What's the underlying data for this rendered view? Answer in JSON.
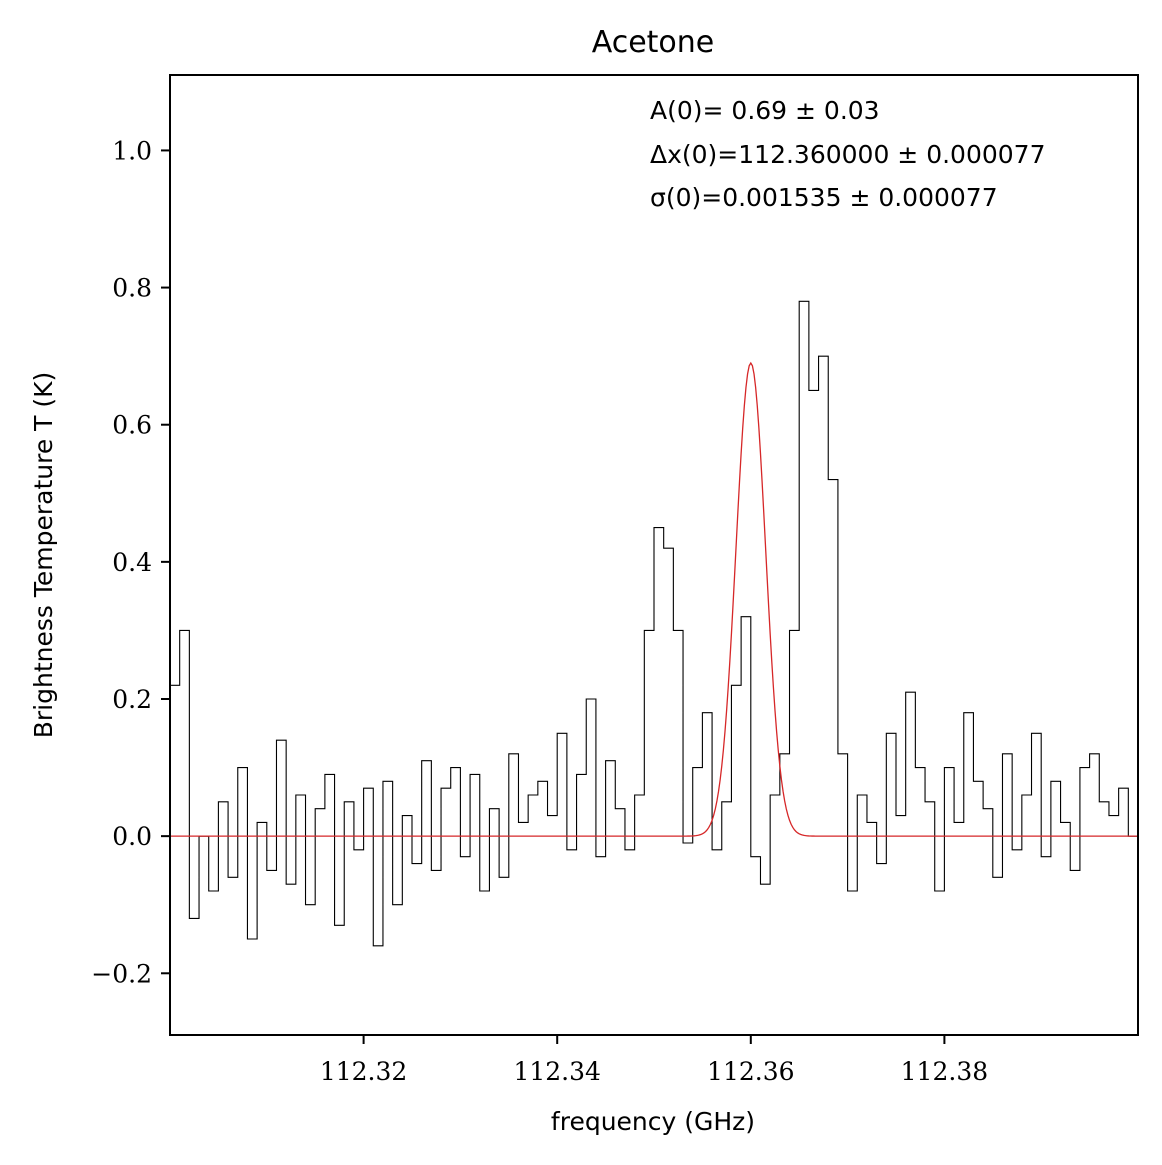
{
  "chart_data": {
    "type": "line",
    "title": "Acetone",
    "xlabel": "frequency (GHz)",
    "ylabel": "Brightness Temperature T (K)",
    "xlim": [
      112.3,
      112.4
    ],
    "ylim": [
      -0.29,
      1.11
    ],
    "x_ticks": [
      112.32,
      112.34,
      112.36,
      112.38
    ],
    "x_tick_labels": [
      "112.32",
      "112.34",
      "112.36",
      "112.38"
    ],
    "y_ticks": [
      -0.2,
      0.0,
      0.2,
      0.4,
      0.6,
      0.8,
      1.0
    ],
    "y_tick_labels": [
      "−0.2",
      "0.0",
      "0.2",
      "0.4",
      "0.6",
      "0.8",
      "1.0"
    ],
    "grid": false,
    "annotations": [
      "A(0)= 0.69 ± 0.03",
      "Δx(0)=112.360000 ± 0.000077",
      "σ(0)=0.001535 ± 0.000077"
    ],
    "colors": {
      "spectrum": "#000000",
      "fit": "#d62728"
    },
    "series": [
      {
        "role": "spectrum",
        "x": [
          112.3,
          112.301,
          112.302,
          112.303,
          112.304,
          112.305,
          112.306,
          112.307,
          112.308,
          112.309,
          112.31,
          112.311,
          112.312,
          112.313,
          112.314,
          112.315,
          112.316,
          112.317,
          112.318,
          112.319,
          112.32,
          112.321,
          112.322,
          112.323,
          112.324,
          112.325,
          112.326,
          112.327,
          112.328,
          112.329,
          112.33,
          112.331,
          112.332,
          112.333,
          112.334,
          112.335,
          112.336,
          112.337,
          112.338,
          112.339,
          112.34,
          112.341,
          112.342,
          112.343,
          112.344,
          112.345,
          112.346,
          112.347,
          112.348,
          112.349,
          112.35,
          112.351,
          112.352,
          112.353,
          112.354,
          112.355,
          112.356,
          112.357,
          112.358,
          112.359,
          112.36,
          112.361,
          112.362,
          112.363,
          112.364,
          112.365,
          112.366,
          112.367,
          112.368,
          112.369,
          112.37,
          112.371,
          112.372,
          112.373,
          112.374,
          112.375,
          112.376,
          112.377,
          112.378,
          112.379,
          112.38,
          112.381,
          112.382,
          112.383,
          112.384,
          112.385,
          112.386,
          112.387,
          112.388,
          112.389,
          112.39,
          112.391,
          112.392,
          112.393,
          112.394,
          112.395,
          112.396,
          112.397,
          112.398,
          112.399,
          112.4
        ],
        "y": [
          0.22,
          0.3,
          -0.12,
          0.0,
          -0.08,
          0.05,
          -0.06,
          0.1,
          -0.15,
          0.02,
          -0.05,
          0.14,
          -0.07,
          0.06,
          -0.1,
          0.04,
          0.09,
          -0.13,
          0.05,
          -0.02,
          0.07,
          -0.16,
          0.08,
          -0.1,
          0.03,
          -0.04,
          0.11,
          -0.05,
          0.07,
          0.1,
          -0.03,
          0.09,
          -0.08,
          0.04,
          -0.06,
          0.12,
          0.02,
          0.06,
          0.08,
          0.03,
          0.15,
          -0.02,
          0.09,
          0.2,
          -0.03,
          0.11,
          0.04,
          -0.02,
          0.06,
          0.3,
          0.45,
          0.42,
          0.3,
          -0.01,
          0.1,
          0.18,
          -0.02,
          0.05,
          0.22,
          0.32,
          -0.03,
          -0.07,
          0.06,
          0.12,
          0.3,
          0.78,
          0.65,
          0.7,
          0.52,
          0.12,
          -0.08,
          0.06,
          0.02,
          -0.04,
          0.15,
          0.03,
          0.21,
          0.1,
          0.05,
          -0.08,
          0.1,
          0.02,
          0.18,
          0.08,
          0.04,
          -0.06,
          0.12,
          -0.02,
          0.06,
          0.15,
          -0.03,
          0.08,
          0.02,
          -0.05,
          0.1,
          0.12,
          0.05,
          0.03,
          0.07,
          0.0,
          0.04
        ]
      },
      {
        "role": "fit",
        "model": "gaussian",
        "amplitude": 0.69,
        "center": 112.36,
        "sigma": 0.001535
      }
    ]
  }
}
